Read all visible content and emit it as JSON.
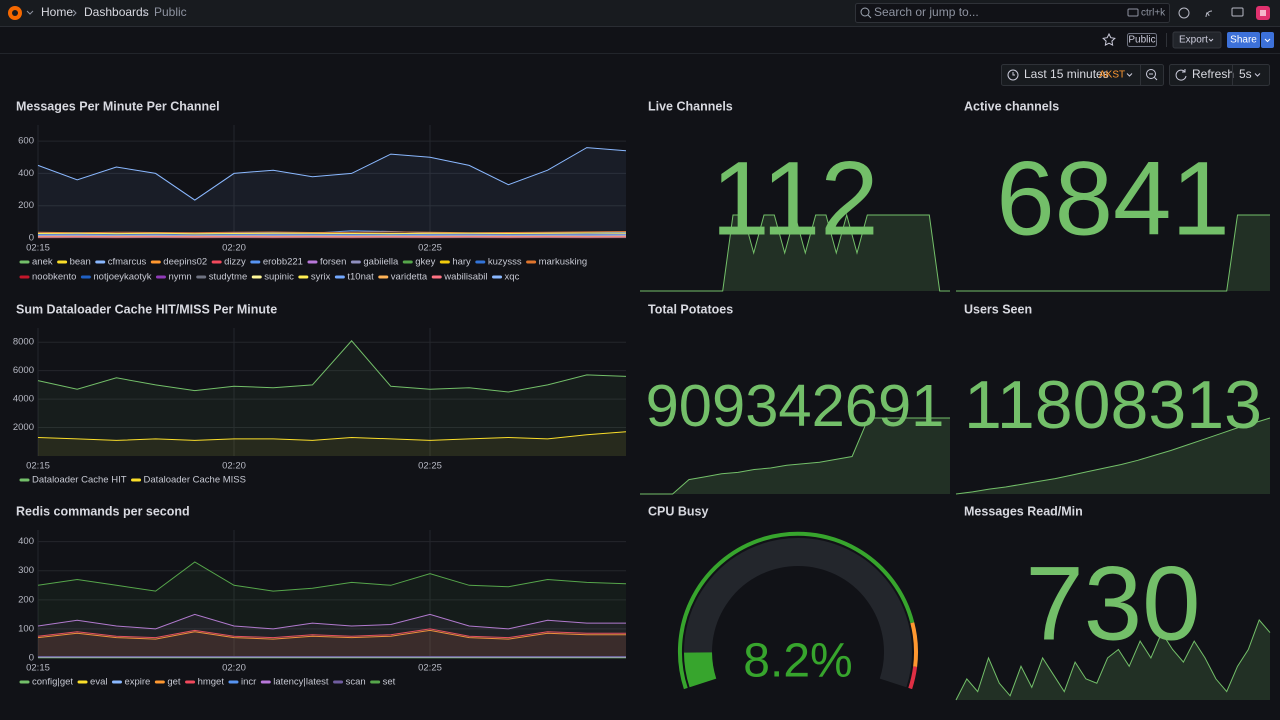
{
  "nav": {
    "breadcrumbs": [
      "Home",
      "Dashboards",
      "Public"
    ],
    "search": "Search or jump to...",
    "shortcut": "ctrl+k"
  },
  "toolbar": {
    "badge": "Public",
    "export": "Export",
    "share": "Share",
    "time_range": "Last 15 minutes",
    "timezone": "AKST",
    "refresh": "Refresh",
    "interval": "5s"
  },
  "chart_data": [
    {
      "type": "line",
      "title": "Messages Per Minute Per Channel",
      "x": [
        "02:15",
        "02:16",
        "02:17",
        "02:18",
        "02:19",
        "02:20",
        "02:21",
        "02:22",
        "02:23",
        "02:24",
        "02:25",
        "02:26",
        "02:27",
        "02:28",
        "02:29",
        "02:30"
      ],
      "xlim": [
        "02:15",
        "02:30"
      ],
      "xticks": [
        "02:15",
        "02:20",
        "02:25"
      ],
      "ylim": [
        0,
        700
      ],
      "yticks": [
        0,
        200,
        400,
        600
      ],
      "grid": true,
      "series": [
        {
          "name": "anek",
          "color": "#73bf69",
          "values": [
            20,
            22,
            18,
            20,
            25,
            22,
            20,
            18,
            20,
            22,
            24,
            20,
            22,
            20,
            25,
            30
          ]
        },
        {
          "name": "bean",
          "color": "#fade2a",
          "values": [
            15,
            14,
            16,
            15,
            13,
            15,
            16,
            14,
            15,
            16,
            14,
            15,
            17,
            16,
            15,
            18
          ]
        },
        {
          "name": "cfmarcus",
          "color": "#8ab8ff",
          "values": [
            10,
            12,
            11,
            10,
            12,
            11,
            13,
            12,
            11,
            10,
            12,
            11,
            10,
            12,
            11,
            10
          ]
        },
        {
          "name": "deepins02",
          "color": "#ff9830",
          "values": [
            25,
            28,
            24,
            26,
            22,
            25,
            27,
            24,
            26,
            28,
            25,
            24,
            26,
            27,
            30,
            32
          ]
        },
        {
          "name": "dizzy",
          "color": "#f2495c",
          "values": [
            5,
            6,
            5,
            7,
            6,
            5,
            6,
            7,
            5,
            6,
            5,
            6,
            7,
            6,
            5,
            6
          ]
        },
        {
          "name": "erobb221",
          "color": "#5794f2",
          "values": [
            30,
            32,
            28,
            30,
            27,
            31,
            33,
            30,
            45,
            40,
            32,
            30,
            28,
            31,
            33,
            35
          ]
        },
        {
          "name": "forsen",
          "color": "#b877d9",
          "values": [
            18,
            20,
            17,
            19,
            16,
            18,
            20,
            19,
            18,
            17,
            19,
            20,
            18,
            19,
            21,
            22
          ]
        },
        {
          "name": "gabiiella",
          "color": "#8f8fbf",
          "values": [
            8,
            9,
            8,
            10,
            9,
            8,
            9,
            10,
            8,
            9,
            10,
            9,
            8,
            9,
            10,
            9
          ]
        },
        {
          "name": "gkey",
          "color": "#56a64b",
          "values": [
            3,
            4,
            3,
            4,
            3,
            4,
            3,
            4,
            3,
            4,
            3,
            4,
            3,
            4,
            3,
            4
          ]
        },
        {
          "name": "hary",
          "color": "#f2cc0c",
          "values": [
            12,
            13,
            12,
            11,
            12,
            13,
            12,
            11,
            12,
            13,
            12,
            11,
            12,
            13,
            12,
            14
          ]
        },
        {
          "name": "kuzysss",
          "color": "#3274d9",
          "values": [
            22,
            24,
            21,
            23,
            20,
            22,
            24,
            23,
            22,
            21,
            23,
            24,
            22,
            23,
            25,
            26
          ]
        },
        {
          "name": "markusking",
          "color": "#e0752d",
          "values": [
            35,
            33,
            36,
            34,
            32,
            35,
            37,
            34,
            36,
            38,
            35,
            33,
            34,
            36,
            38,
            40
          ]
        },
        {
          "name": "noobkento",
          "color": "#c4162a",
          "values": [
            2,
            3,
            2,
            3,
            2,
            3,
            2,
            3,
            2,
            3,
            2,
            3,
            2,
            3,
            2,
            3
          ]
        },
        {
          "name": "notjoeykaotyk",
          "color": "#1f60c4",
          "values": [
            14,
            15,
            13,
            14,
            12,
            14,
            15,
            14,
            13,
            14,
            15,
            14,
            13,
            14,
            15,
            16
          ]
        },
        {
          "name": "nymn",
          "color": "#8f3bb8",
          "values": [
            6,
            7,
            6,
            7,
            6,
            7,
            6,
            7,
            6,
            7,
            6,
            7,
            6,
            7,
            6,
            7
          ]
        },
        {
          "name": "studytme",
          "color": "#6e7280",
          "values": [
            4,
            5,
            4,
            5,
            4,
            5,
            4,
            5,
            4,
            5,
            4,
            5,
            4,
            5,
            4,
            5
          ]
        },
        {
          "name": "supinic",
          "color": "#fff899",
          "values": [
            9,
            10,
            9,
            10,
            9,
            10,
            9,
            10,
            9,
            10,
            9,
            10,
            9,
            10,
            9,
            10
          ]
        },
        {
          "name": "syrix",
          "color": "#ffee52",
          "values": [
            28,
            30,
            27,
            29,
            26,
            28,
            30,
            29,
            28,
            27,
            29,
            30,
            28,
            29,
            31,
            30
          ]
        },
        {
          "name": "t10nat",
          "color": "#73a8ff",
          "values": [
            16,
            17,
            15,
            16,
            14,
            16,
            17,
            16,
            15,
            16,
            17,
            16,
            15,
            16,
            17,
            18
          ]
        },
        {
          "name": "varidetta",
          "color": "#ffb357",
          "values": [
            11,
            12,
            11,
            12,
            11,
            12,
            11,
            12,
            11,
            12,
            11,
            12,
            11,
            12,
            11,
            12
          ]
        },
        {
          "name": "wabilisabil",
          "color": "#ff7383",
          "values": [
            7,
            8,
            7,
            8,
            7,
            8,
            7,
            8,
            7,
            8,
            7,
            8,
            7,
            8,
            7,
            8
          ]
        },
        {
          "name": "xqc",
          "color": "#8ab8ff",
          "values": [
            450,
            360,
            440,
            400,
            235,
            400,
            420,
            380,
            400,
            520,
            500,
            450,
            330,
            420,
            560,
            540
          ]
        }
      ]
    },
    {
      "type": "stat",
      "title": "Live Channels",
      "value": 112,
      "color": "#73bf69",
      "sparkline": [
        104,
        104,
        104,
        104,
        104,
        104,
        104,
        104,
        104,
        112,
        112,
        108,
        112,
        112,
        108,
        112,
        108,
        112,
        112,
        108,
        112,
        108,
        112,
        112,
        112,
        112,
        112,
        112,
        112,
        104,
        104
      ]
    },
    {
      "type": "stat",
      "title": "Active channels",
      "value": 6841,
      "color": "#73bf69",
      "sparkline": [
        6790,
        6790,
        6790,
        6790,
        6790,
        6790,
        6790,
        6790,
        6790,
        6790,
        6790,
        6790,
        6790,
        6790,
        6790,
        6790,
        6790,
        6790,
        6790,
        6790,
        6790,
        6790,
        6790,
        6790,
        6790,
        6790,
        6841,
        6841,
        6841,
        6841
      ]
    },
    {
      "type": "line",
      "title": "Sum Dataloader Cache HIT/MISS Per Minute",
      "x": [
        "02:15",
        "02:16",
        "02:17",
        "02:18",
        "02:19",
        "02:20",
        "02:21",
        "02:22",
        "02:23",
        "02:24",
        "02:25",
        "02:26",
        "02:27",
        "02:28",
        "02:29",
        "02:30"
      ],
      "xlim": [
        "02:15",
        "02:30"
      ],
      "xticks": [
        "02:15",
        "02:20",
        "02:25"
      ],
      "ylim": [
        0,
        9000
      ],
      "yticks": [
        2000,
        4000,
        6000,
        8000
      ],
      "grid": true,
      "series": [
        {
          "name": "Dataloader Cache HIT",
          "color": "#73bf69",
          "values": [
            5300,
            4700,
            5500,
            5000,
            4600,
            4900,
            4800,
            5000,
            8100,
            4900,
            4700,
            4800,
            4500,
            5000,
            5700,
            5600
          ]
        },
        {
          "name": "Dataloader Cache MISS",
          "color": "#fade2a",
          "values": [
            1300,
            1200,
            1100,
            1200,
            1100,
            1200,
            1200,
            1100,
            1300,
            1200,
            1100,
            1200,
            1300,
            1200,
            1500,
            1700
          ]
        }
      ]
    },
    {
      "type": "stat",
      "title": "Total Potatoes",
      "value": 909342691,
      "color": "#73bf69",
      "sparkline": [
        909290000,
        909290000,
        909290000,
        909300000,
        909302000,
        909304000,
        909305000,
        909307000,
        909308000,
        909310000,
        909311000,
        909312000,
        909314000,
        909316000,
        909342691,
        909342691,
        909342691,
        909342691,
        909342691,
        909342691
      ]
    },
    {
      "type": "stat",
      "title": "Users Seen",
      "value": 11808313,
      "color": "#73bf69",
      "sparkline": [
        11700000,
        11703000,
        11707000,
        11710000,
        11714000,
        11718000,
        11722000,
        11727000,
        11732000,
        11737000,
        11742000,
        11748000,
        11755000,
        11762000,
        11770000,
        11778000,
        11786000,
        11794000,
        11801000,
        11808313
      ]
    },
    {
      "type": "line",
      "title": "Redis commands per second",
      "x": [
        "02:15",
        "02:16",
        "02:17",
        "02:18",
        "02:19",
        "02:20",
        "02:21",
        "02:22",
        "02:23",
        "02:24",
        "02:25",
        "02:26",
        "02:27",
        "02:28",
        "02:29",
        "02:30"
      ],
      "xlim": [
        "02:15",
        "02:30"
      ],
      "xticks": [
        "02:15",
        "02:20",
        "02:25"
      ],
      "ylim": [
        0,
        440
      ],
      "yticks": [
        0,
        100,
        200,
        300,
        400
      ],
      "grid": true,
      "series": [
        {
          "name": "config|get",
          "color": "#73bf69",
          "values": [
            1,
            1,
            1,
            1,
            1,
            1,
            1,
            1,
            1,
            1,
            1,
            1,
            1,
            1,
            1,
            1
          ]
        },
        {
          "name": "eval",
          "color": "#fade2a",
          "values": [
            2,
            2,
            2,
            2,
            2,
            2,
            2,
            2,
            2,
            2,
            2,
            2,
            2,
            2,
            2,
            2
          ]
        },
        {
          "name": "expire",
          "color": "#8ab8ff",
          "values": [
            3,
            3,
            3,
            3,
            3,
            3,
            3,
            3,
            3,
            3,
            3,
            3,
            3,
            3,
            3,
            3
          ]
        },
        {
          "name": "get",
          "color": "#ff9830",
          "values": [
            70,
            85,
            70,
            65,
            90,
            70,
            65,
            75,
            70,
            75,
            95,
            70,
            65,
            85,
            80,
            80
          ]
        },
        {
          "name": "hmget",
          "color": "#f2495c",
          "values": [
            75,
            90,
            75,
            70,
            95,
            75,
            70,
            80,
            75,
            80,
            100,
            75,
            70,
            90,
            85,
            85
          ]
        },
        {
          "name": "incr",
          "color": "#5794f2",
          "values": [
            4,
            4,
            4,
            4,
            4,
            4,
            4,
            4,
            4,
            4,
            4,
            4,
            4,
            4,
            4,
            4
          ]
        },
        {
          "name": "latency|latest",
          "color": "#b877d9",
          "values": [
            110,
            130,
            110,
            100,
            150,
            110,
            100,
            120,
            110,
            115,
            150,
            110,
            100,
            130,
            120,
            120
          ]
        },
        {
          "name": "scan",
          "color": "#705da0",
          "values": [
            5,
            5,
            5,
            5,
            5,
            5,
            5,
            5,
            5,
            5,
            5,
            5,
            5,
            5,
            5,
            5
          ]
        },
        {
          "name": "set",
          "color": "#56a64b",
          "values": [
            250,
            270,
            250,
            230,
            330,
            250,
            230,
            240,
            260,
            250,
            290,
            250,
            245,
            270,
            260,
            255
          ]
        }
      ]
    },
    {
      "type": "gauge",
      "title": "CPU Busy",
      "value": 8.2,
      "value_label": "8.2%",
      "range": [
        0,
        100
      ],
      "color": "#37a52d",
      "thresholds": [
        {
          "value": 0,
          "color": "#37a52d"
        },
        {
          "value": 85,
          "color": "#ff9830"
        },
        {
          "value": 95,
          "color": "#e02f44"
        }
      ]
    },
    {
      "type": "stat",
      "title": "Messages Read/Min",
      "value": 730,
      "color": "#73bf69",
      "sparkline": [
        600,
        650,
        620,
        700,
        640,
        610,
        680,
        630,
        700,
        660,
        620,
        690,
        650,
        640,
        700,
        720,
        680,
        740,
        700,
        760,
        720,
        690,
        740,
        700,
        650,
        620,
        680,
        720,
        790,
        760
      ]
    }
  ]
}
